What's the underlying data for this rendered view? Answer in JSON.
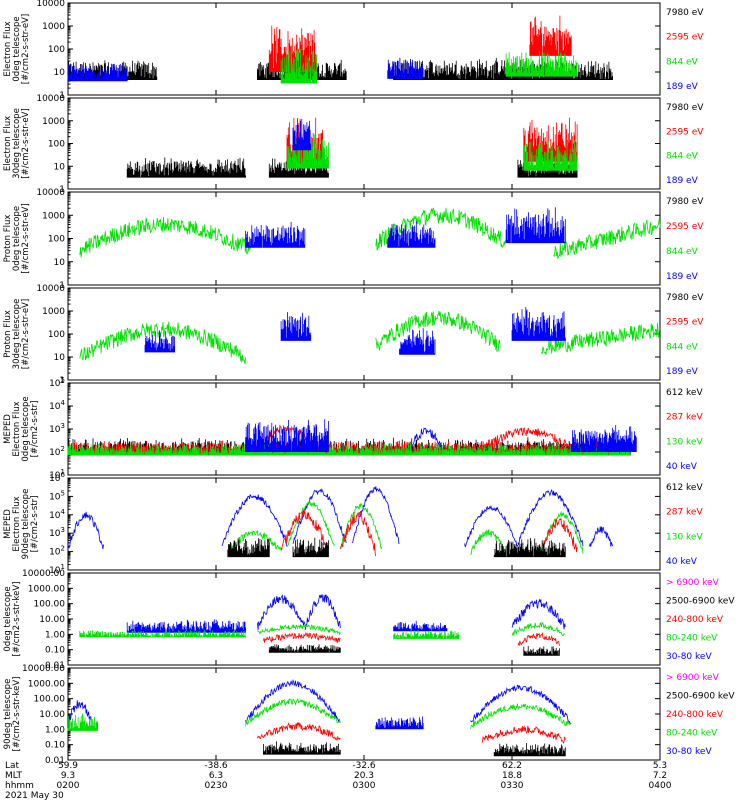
{
  "chart_data": {
    "type": "line",
    "x_axis": {
      "rows": [
        {
          "label": "Lat",
          "values": [
            "59.9",
            "-38.6",
            "-32.6",
            "62.2",
            "5.3"
          ]
        },
        {
          "label": "MLT",
          "values": [
            "9.3",
            "6.3",
            "20.3",
            "18.8",
            "7.2"
          ]
        },
        {
          "label": "hhmm",
          "values": [
            "0200",
            "0230",
            "0300",
            "0330",
            "0400"
          ]
        }
      ],
      "date": "2021 May 30"
    },
    "panels": [
      {
        "ylabel": [
          "Electron Flux",
          "0deg telescope",
          "[#/cm2-s-str-eV]"
        ],
        "yscale": "log",
        "ylim": [
          1,
          10000
        ],
        "ticks": [
          "1",
          "10",
          "100",
          "1000",
          "10000"
        ],
        "legend": [
          {
            "label": "7980 eV",
            "color": "#000000"
          },
          {
            "label": "2595 eV",
            "color": "#ff0000"
          },
          {
            "label": "844 eV",
            "color": "#00e000"
          },
          {
            "label": "189 eV",
            "color": "#0000ff"
          }
        ]
      },
      {
        "ylabel": [
          "Electron Flux",
          "30deg telescope",
          "[#/cm2-s-str-eV]"
        ],
        "yscale": "log",
        "ylim": [
          1,
          10000
        ],
        "ticks": [
          "1",
          "10",
          "100",
          "1000",
          "10000"
        ],
        "legend": [
          {
            "label": "7980 eV",
            "color": "#000000"
          },
          {
            "label": "2595 eV",
            "color": "#ff0000"
          },
          {
            "label": "844 eV",
            "color": "#00e000"
          },
          {
            "label": "189 eV",
            "color": "#0000ff"
          }
        ]
      },
      {
        "ylabel": [
          "Proton Flux",
          "0deg telescope",
          "[#/cm2-s-str-eV]"
        ],
        "yscale": "log",
        "ylim": [
          1,
          10000
        ],
        "ticks": [
          "1",
          "10",
          "100",
          "1000",
          "10000"
        ],
        "legend": [
          {
            "label": "7980 eV",
            "color": "#000000"
          },
          {
            "label": "2595 eV",
            "color": "#ff0000"
          },
          {
            "label": "844 eV",
            "color": "#00e000"
          },
          {
            "label": "189 eV",
            "color": "#0000ff"
          }
        ]
      },
      {
        "ylabel": [
          "Proton Flux",
          "30deg telescope",
          "[#/cm2-s-str-eV]"
        ],
        "yscale": "log",
        "ylim": [
          1,
          10000
        ],
        "ticks": [
          "1",
          "10",
          "100",
          "1000",
          "10000"
        ],
        "legend": [
          {
            "label": "7980 eV",
            "color": "#000000"
          },
          {
            "label": "2595 eV",
            "color": "#ff0000"
          },
          {
            "label": "844 eV",
            "color": "#00e000"
          },
          {
            "label": "189 eV",
            "color": "#0000ff"
          }
        ]
      },
      {
        "ylabel": [
          "MEPED",
          "Electron Flux",
          "0deg telescope",
          "[#/cm2-s-str]"
        ],
        "yscale": "log",
        "ylim": [
          10,
          100000
        ],
        "ticks": [
          "10^1",
          "10^2",
          "10^3",
          "10^4",
          "10^5"
        ],
        "legend": [
          {
            "label": "612 keV",
            "color": "#000000"
          },
          {
            "label": "287 keV",
            "color": "#ff0000"
          },
          {
            "label": "130 keV",
            "color": "#00e000"
          },
          {
            "label": "40 keV",
            "color": "#0000ff"
          }
        ]
      },
      {
        "ylabel": [
          "MEPED",
          "Electron Flux",
          "90deg telescope",
          "[#/cm2-s-str]"
        ],
        "yscale": "log",
        "ylim": [
          10,
          1000000
        ],
        "ticks": [
          "10^1",
          "10^2",
          "10^3",
          "10^4",
          "10^5",
          "10^6"
        ],
        "legend": [
          {
            "label": "612 keV",
            "color": "#000000"
          },
          {
            "label": "287 keV",
            "color": "#ff0000"
          },
          {
            "label": "130 keV",
            "color": "#00e000"
          },
          {
            "label": "40 keV",
            "color": "#0000ff"
          }
        ]
      },
      {
        "ylabel": [
          "0deg telescope",
          "[#/cm2-s-str-keV]"
        ],
        "yscale": "log",
        "ylim": [
          0.01,
          10000
        ],
        "ticks": [
          "0.01",
          "0.10",
          "1.00",
          "10.00",
          "100.00",
          "1000.00",
          "10000.00"
        ],
        "legend": [
          {
            "label": "> 6900 keV",
            "color": "#ff00ff"
          },
          {
            "label": "2500-6900 keV",
            "color": "#000000"
          },
          {
            "label": "240-800 keV",
            "color": "#ff0000"
          },
          {
            "label": "80-240 keV",
            "color": "#00e000"
          },
          {
            "label": "30-80 keV",
            "color": "#0000ff"
          }
        ]
      },
      {
        "ylabel": [
          "90deg telescope",
          "[#/cm2-s-str-keV]"
        ],
        "yscale": "log",
        "ylim": [
          0.01,
          10000
        ],
        "ticks": [
          "0.01",
          "0.10",
          "1.00",
          "10.00",
          "100.00",
          "1000.00",
          "10000.00"
        ],
        "legend": [
          {
            "label": "> 6900 keV",
            "color": "#ff00ff"
          },
          {
            "label": "2500-6900 keV",
            "color": "#000000"
          },
          {
            "label": "240-800 keV",
            "color": "#ff0000"
          },
          {
            "label": "80-240 keV",
            "color": "#00e000"
          },
          {
            "label": "30-80 keV",
            "color": "#0000ff"
          }
        ]
      }
    ],
    "series_note_sample_times": [
      "0200",
      "0230",
      "0300",
      "0330",
      "0400"
    ],
    "approx_levels": {
      "panel3_green_peaks": [
        400,
        1000,
        300
      ],
      "panel3_blue_peaks": [
        800,
        2000
      ],
      "panel6_blue_peaks": [
        100000,
        200000,
        200000,
        50000,
        60000
      ],
      "panel7_blue_peaks": [
        800,
        1000,
        200
      ],
      "panel8_blue_peaks": [
        1000,
        1000,
        300,
        300
      ]
    }
  }
}
